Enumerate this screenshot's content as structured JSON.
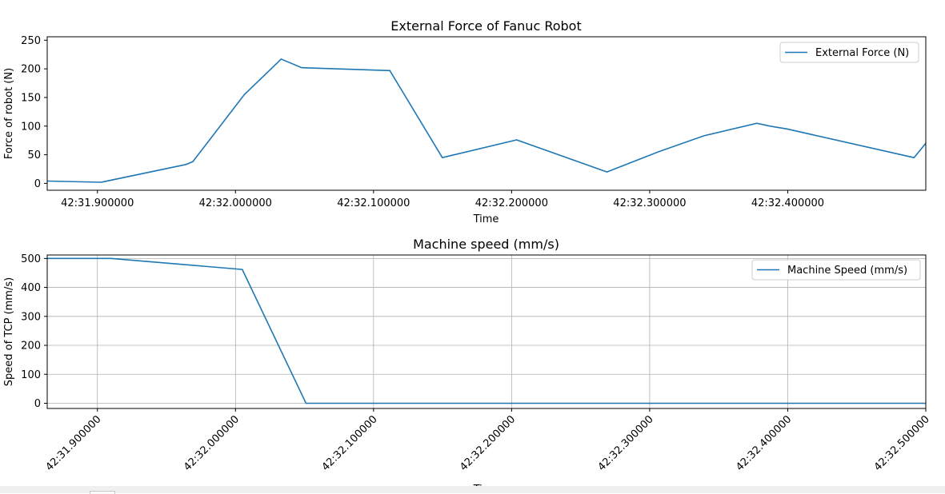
{
  "chart_data": [
    {
      "type": "line",
      "title": "External Force of Fanuc Robot",
      "xlabel": "Time",
      "ylabel": "Force of robot (N)",
      "xlim": [
        42.1886,
        42.5386
      ],
      "ylim": [
        -12,
        256
      ],
      "yticks": [
        0,
        50,
        100,
        150,
        200,
        250
      ],
      "xticks": [
        {
          "value": 42.2086,
          "label": "42:31.900000"
        },
        {
          "value": 42.2636,
          "label": "42:32.000000"
        },
        {
          "value": 42.3186,
          "label": "42:32.100000"
        },
        {
          "value": 42.3736,
          "label": "42:32.200000"
        },
        {
          "value": 42.4286,
          "label": "42:32.300000"
        },
        {
          "value": 42.4836,
          "label": "42:32.400000"
        }
      ],
      "grid": false,
      "legend": "upper right",
      "color": "#1f77b4",
      "series": [
        {
          "name": "External Force (N)",
          "x": [
            42.1886,
            42.2101,
            42.2438,
            42.2466,
            42.2671,
            42.2818,
            42.29,
            42.3251,
            42.346,
            42.3756,
            42.4116,
            42.432,
            42.4502,
            42.4713,
            42.4766,
            42.4833,
            42.5339,
            42.5386
          ],
          "y": [
            4,
            2,
            33,
            38,
            155,
            217,
            202,
            197,
            45,
            76,
            20,
            55,
            83,
            105,
            100,
            95,
            45,
            70
          ]
        }
      ]
    },
    {
      "type": "line",
      "title": "Machine speed (mm/s)",
      "xlabel": "Time",
      "ylabel": "Speed of TCP (mm/s)",
      "xlim": [
        42.1886,
        42.5386
      ],
      "ylim": [
        -18,
        512
      ],
      "yticks": [
        0,
        100,
        200,
        300,
        400,
        500
      ],
      "xticks": [
        {
          "value": 42.2086,
          "label": "42:31.900000"
        },
        {
          "value": 42.2636,
          "label": "42:32.000000"
        },
        {
          "value": 42.3186,
          "label": "42:32.100000"
        },
        {
          "value": 42.3736,
          "label": "42:32.200000"
        },
        {
          "value": 42.4286,
          "label": "42:32.300000"
        },
        {
          "value": 42.4836,
          "label": "42:32.400000"
        },
        {
          "value": 42.5386,
          "label": "42:32.500000"
        }
      ],
      "grid": true,
      "legend": "upper right",
      "color": "#1f77b4",
      "series": [
        {
          "name": "Machine Speed (mm/s)",
          "x": [
            42.1886,
            42.2101,
            42.2139,
            42.2663,
            42.2917,
            42.5386
          ],
          "y": [
            500,
            500,
            500,
            462,
            0,
            0
          ]
        }
      ]
    }
  ],
  "footer": {
    "xlabel_cut": "Time"
  }
}
